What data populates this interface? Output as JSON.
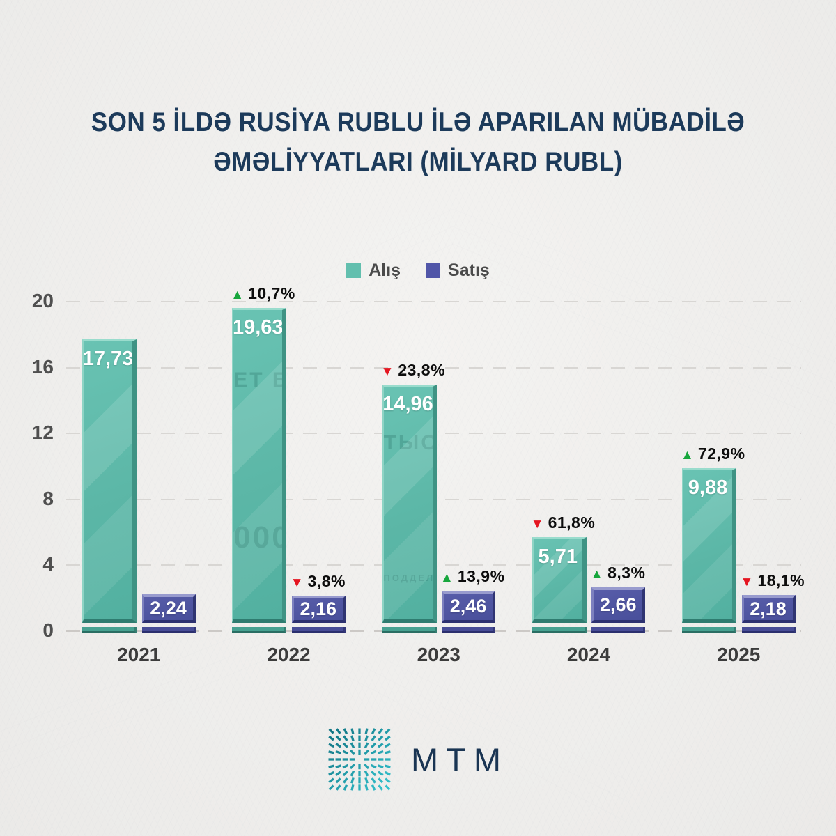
{
  "title": "SON 5 İLDƏ RUSİYA RUBLU İLƏ APARILAN MÜBADİLƏ\nƏMƏLİYYATLARI (MİLYARD RUBL)",
  "legend": [
    {
      "label": "Alış"
    },
    {
      "label": "Satış"
    }
  ],
  "footer": {
    "logo_text": "MTM"
  },
  "chart_data": {
    "type": "bar",
    "title": "SON 5 İLDƏ RUSİYA RUBLU İLƏ APARILAN MÜBADİLƏ ƏMƏLİYYATLARI (MİLYARD RUBL)",
    "categories": [
      "2021",
      "2022",
      "2023",
      "2024",
      "2025"
    ],
    "series": [
      {
        "name": "Alış",
        "values": [
          17.73,
          19.63,
          14.96,
          5.71,
          9.88
        ],
        "display": [
          "17,73",
          "19,63",
          "14,96",
          "5,71",
          "9,88"
        ],
        "change": [
          null,
          "10,7%",
          "23,8%",
          "61,8%",
          "72,9%"
        ],
        "change_dir": [
          null,
          "up",
          "down",
          "down",
          "up"
        ]
      },
      {
        "name": "Satış",
        "values": [
          2.24,
          2.16,
          2.46,
          2.66,
          2.18
        ],
        "display": [
          "2,24",
          "2,16",
          "2,46",
          "2,66",
          "2,18"
        ],
        "change": [
          null,
          "3,8%",
          "13,9%",
          "8,3%",
          "18,1%"
        ],
        "change_dir": [
          null,
          "down",
          "up",
          "up",
          "down"
        ]
      }
    ],
    "watermark_text": [
      [],
      [
        "ЕТ БАН",
        "000"
      ],
      [
        "ТЫС",
        "ПОДДЕЛКА БИЛЕ"
      ],
      [],
      []
    ],
    "ylim": [
      0,
      20
    ],
    "yticks": [
      0,
      4,
      8,
      12,
      16,
      20
    ],
    "grid": "dashed horizontal",
    "legend_position": "top center",
    "colors": {
      "alis": "#5cb7a7",
      "satis": "#4e54a0",
      "up": "#17a63c",
      "down": "#e51520",
      "title": "#1c3a5a",
      "axis_text": "#4f4f4f",
      "background": "#efeeec"
    }
  }
}
